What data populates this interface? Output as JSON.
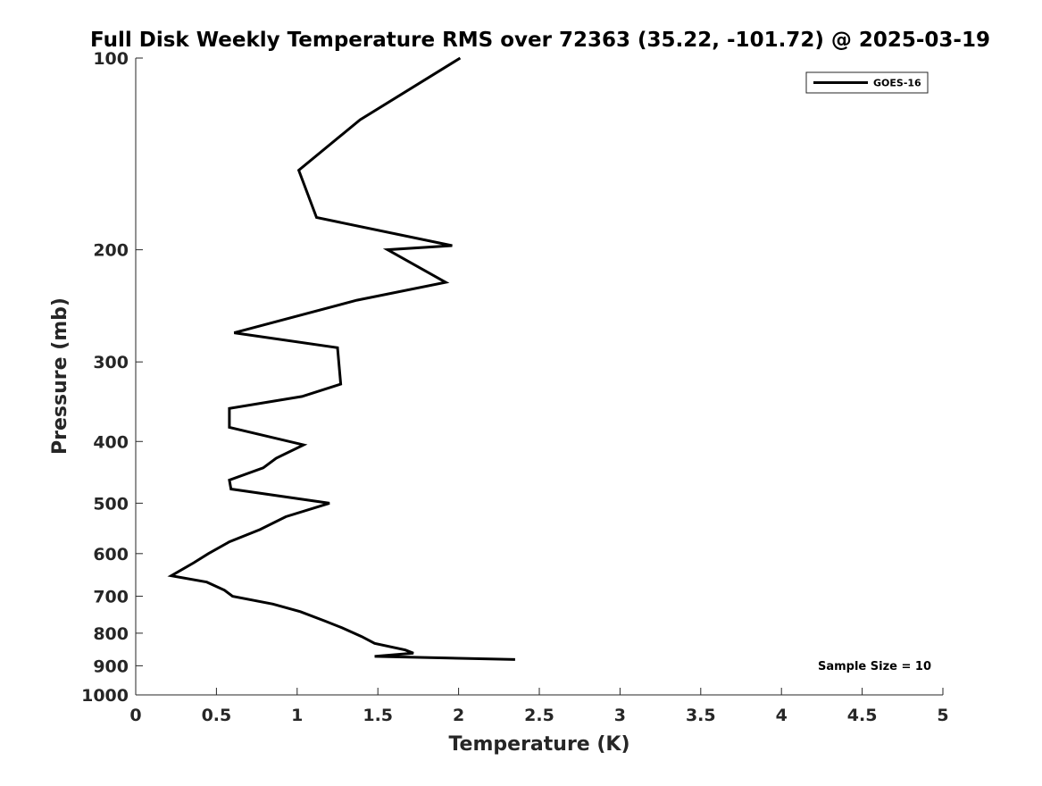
{
  "chart_data": {
    "type": "line",
    "title": "Full Disk Weekly Temperature RMS over 72363 (35.22, -101.72) @ 2025-03-19",
    "xlabel": "Temperature (K)",
    "ylabel": "Pressure (mb)",
    "xlim": [
      0,
      5
    ],
    "ylim": [
      100,
      1000
    ],
    "y_scale": "log",
    "y_reversed": true,
    "grid": false,
    "x_ticks": [
      "0",
      "0.5",
      "1",
      "1.5",
      "2",
      "2.5",
      "3",
      "3.5",
      "4",
      "4.5",
      "5"
    ],
    "y_ticks": [
      "100",
      "200",
      "300",
      "400",
      "500",
      "600",
      "700",
      "800",
      "900",
      "1000"
    ],
    "legend": {
      "position": "top-right",
      "entries": [
        "GOES-16"
      ]
    },
    "annotation": "Sample Size = 10",
    "series": [
      {
        "name": "GOES-16",
        "color": "#000000",
        "points": [
          {
            "t": 2.01,
            "p": 100
          },
          {
            "t": 1.39,
            "p": 125
          },
          {
            "t": 1.01,
            "p": 150
          },
          {
            "t": 1.12,
            "p": 178
          },
          {
            "t": 1.96,
            "p": 197
          },
          {
            "t": 1.56,
            "p": 200
          },
          {
            "t": 1.92,
            "p": 225
          },
          {
            "t": 1.37,
            "p": 240
          },
          {
            "t": 0.61,
            "p": 270
          },
          {
            "t": 1.25,
            "p": 285
          },
          {
            "t": 1.27,
            "p": 325
          },
          {
            "t": 1.03,
            "p": 340
          },
          {
            "t": 0.58,
            "p": 355
          },
          {
            "t": 0.58,
            "p": 380
          },
          {
            "t": 1.04,
            "p": 405
          },
          {
            "t": 0.87,
            "p": 425
          },
          {
            "t": 0.79,
            "p": 440
          },
          {
            "t": 0.58,
            "p": 460
          },
          {
            "t": 0.59,
            "p": 475
          },
          {
            "t": 1.2,
            "p": 500
          },
          {
            "t": 0.93,
            "p": 525
          },
          {
            "t": 0.77,
            "p": 550
          },
          {
            "t": 0.58,
            "p": 575
          },
          {
            "t": 0.45,
            "p": 600
          },
          {
            "t": 0.36,
            "p": 620
          },
          {
            "t": 0.22,
            "p": 650
          },
          {
            "t": 0.44,
            "p": 665
          },
          {
            "t": 0.55,
            "p": 685
          },
          {
            "t": 0.6,
            "p": 700
          },
          {
            "t": 0.85,
            "p": 720
          },
          {
            "t": 1.02,
            "p": 740
          },
          {
            "t": 1.17,
            "p": 765
          },
          {
            "t": 1.28,
            "p": 785
          },
          {
            "t": 1.4,
            "p": 810
          },
          {
            "t": 1.48,
            "p": 830
          },
          {
            "t": 1.67,
            "p": 850
          },
          {
            "t": 1.72,
            "p": 860
          },
          {
            "t": 1.48,
            "p": 870
          },
          {
            "t": 2.35,
            "p": 880
          }
        ]
      }
    ]
  }
}
